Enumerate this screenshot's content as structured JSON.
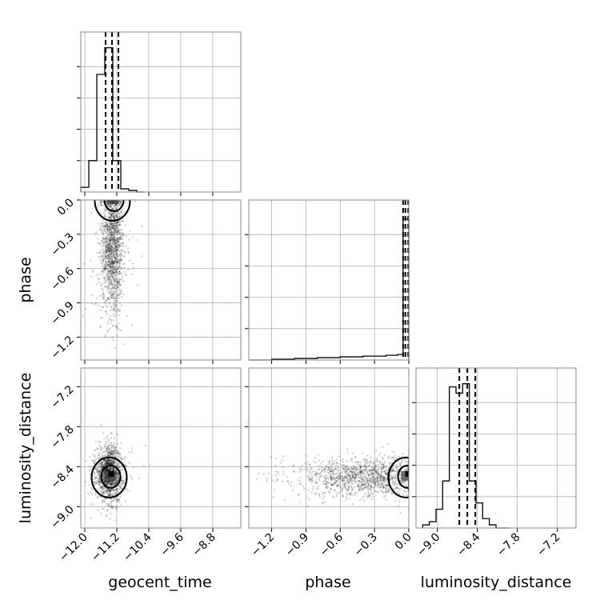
{
  "chart_data": {
    "type": "corner",
    "parameters": [
      "geocent_time",
      "phase",
      "luminosity_distance"
    ],
    "axis_labels": {
      "x": [
        "geocent_time",
        "phase",
        "luminosity_distance"
      ],
      "y_row1": "phase",
      "y_row2": "luminosity_distance"
    },
    "ranges": {
      "geocent_time": [
        -12.1,
        -8.1
      ],
      "phase": [
        -1.4,
        0.0
      ],
      "luminosity_distance": [
        -9.32,
        -6.92
      ]
    },
    "ticks": {
      "geocent_time": [
        -12.0,
        -11.2,
        -10.4,
        -9.6,
        -8.8
      ],
      "phase": [
        -1.2,
        -0.9,
        -0.6,
        -0.3,
        0.0
      ],
      "luminosity_distance": [
        -9.0,
        -8.4,
        -7.8,
        -7.2
      ]
    },
    "tick_labels": {
      "geocent_time": [
        "−12.0",
        "−11.2",
        "−10.4",
        "−9.6",
        "−8.8"
      ],
      "phase": [
        "−1.2",
        "−0.9",
        "−0.6",
        "−0.3",
        "0.0"
      ],
      "luminosity_distance": [
        "−9.0",
        "−8.4",
        "−7.8",
        "−7.2"
      ]
    },
    "histograms": {
      "geocent_time": {
        "bin_edges": [
          -12.1,
          -11.9,
          -11.7,
          -11.5,
          -11.3,
          -11.1,
          -10.9,
          -10.7,
          -10.5
        ],
        "counts": [
          0.03,
          0.2,
          0.75,
          0.92,
          0.2,
          0.02,
          0.01,
          0.0
        ],
        "quantiles": [
          -11.48,
          -11.32,
          -11.16
        ]
      },
      "phase": {
        "bin_edges": [
          -1.4,
          -1.2,
          -1.0,
          -0.8,
          -0.6,
          -0.4,
          -0.2,
          -0.1,
          -0.05,
          0.0
        ],
        "counts": [
          0.0,
          0.005,
          0.01,
          0.015,
          0.02,
          0.025,
          0.03,
          0.035,
          0.9
        ],
        "quantiles": [
          -0.05,
          -0.03,
          -0.005
        ]
      },
      "luminosity_distance": {
        "bin_edges": [
          -9.22,
          -9.12,
          -9.02,
          -8.92,
          -8.82,
          -8.72,
          -8.62,
          -8.52,
          -8.42,
          -8.32,
          -8.22,
          -8.12,
          -8.02,
          -7.92
        ],
        "counts": [
          0.02,
          0.04,
          0.12,
          0.3,
          0.9,
          0.86,
          0.92,
          0.3,
          0.16,
          0.06,
          0.02,
          0.0,
          0.0
        ],
        "quantiles": [
          -8.67,
          -8.55,
          -8.43
        ]
      }
    },
    "scatter_2d": [
      {
        "x_param": "geocent_time",
        "y_param": "phase",
        "center": [
          -11.32,
          -0.4
        ],
        "spread": [
          0.14,
          0.3
        ],
        "peak": [
          -11.27,
          0.0
        ]
      },
      {
        "x_param": "geocent_time",
        "y_param": "luminosity_distance",
        "center": [
          -11.4,
          -8.5
        ],
        "spread": [
          0.16,
          0.2
        ],
        "peak": [
          -11.35,
          -8.55
        ]
      },
      {
        "x_param": "phase",
        "y_param": "luminosity_distance",
        "center": [
          -0.35,
          -8.55
        ],
        "spread": [
          0.3,
          0.15
        ],
        "peak": [
          -0.01,
          -8.55
        ]
      }
    ],
    "grid": true,
    "colors": {
      "points": "#000000",
      "contour": "#000000",
      "frame": "#888888",
      "grid": "#b0b0b0"
    }
  }
}
